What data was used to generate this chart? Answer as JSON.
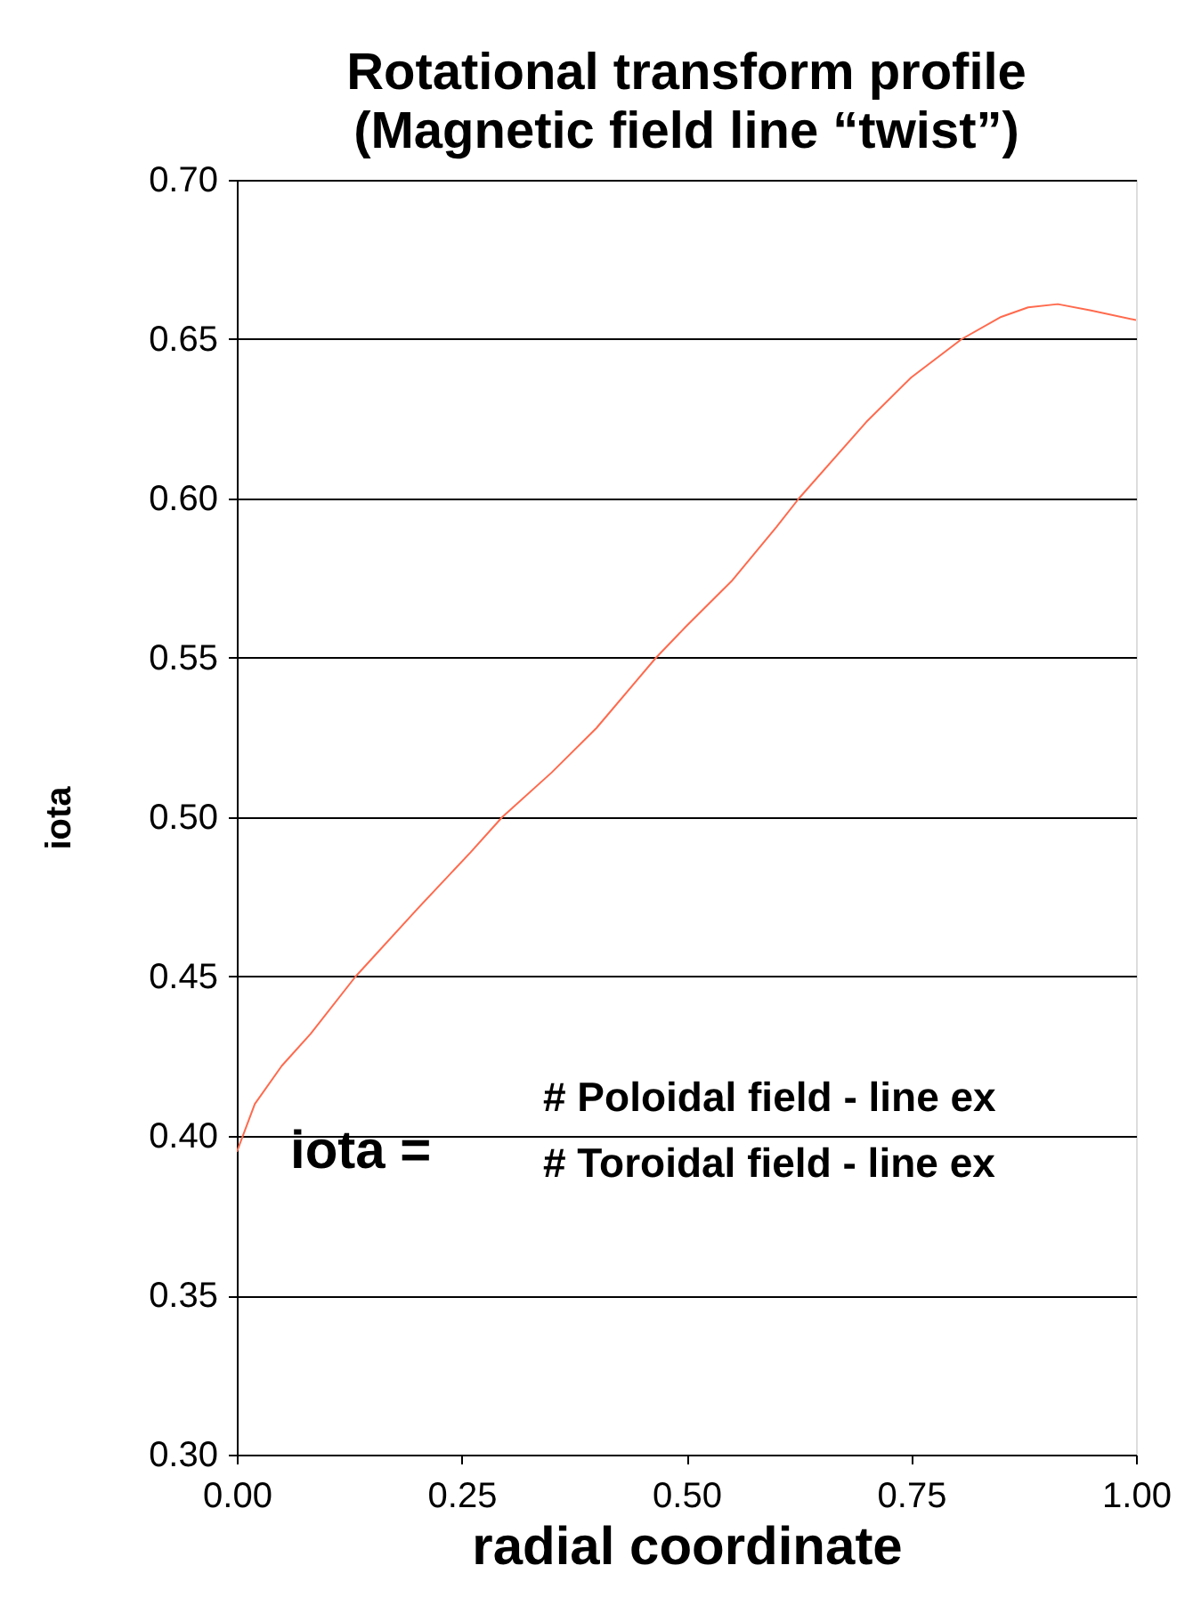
{
  "chart_data": {
    "type": "line",
    "title": "Rotational transform profile\n(Magnetic field line “twist”)",
    "xlabel": "radial coordinate",
    "ylabel": "iota",
    "x": [
      0,
      0.02,
      0.05,
      0.082,
      0.132,
      0.2,
      0.26,
      0.295,
      0.35,
      0.4,
      0.466,
      0.5,
      0.55,
      0.6,
      0.625,
      0.7,
      0.75,
      0.806,
      0.85,
      0.88,
      0.913,
      0.95,
      1.0
    ],
    "series": [
      {
        "color": "#ff6a4d",
        "values": [
          0.395,
          0.41,
          0.422,
          0.432,
          0.45,
          0.471,
          0.489,
          0.5,
          0.514,
          0.528,
          0.55,
          0.56,
          0.574,
          0.591,
          0.6,
          0.624,
          0.638,
          0.65,
          0.657,
          0.66,
          0.661,
          0.659,
          0.656
        ]
      }
    ],
    "xlim": [
      0,
      1
    ],
    "ylim": [
      0.3,
      0.7
    ],
    "xticks": [
      {
        "value": 0,
        "label": "0.00"
      },
      {
        "value": 0.25,
        "label": "0.25"
      },
      {
        "value": 0.5,
        "label": "0.50"
      },
      {
        "value": 0.75,
        "label": "0.75"
      },
      {
        "value": 1,
        "label": "1.00"
      }
    ],
    "yticks": [
      {
        "value": 0.3,
        "label": "0.30"
      },
      {
        "value": 0.35,
        "label": "0.35"
      },
      {
        "value": 0.4,
        "label": "0.40"
      },
      {
        "value": 0.45,
        "label": "0.45"
      },
      {
        "value": 0.5,
        "label": "0.50"
      },
      {
        "value": 0.55,
        "label": "0.55"
      },
      {
        "value": 0.6,
        "label": "0.60"
      },
      {
        "value": 0.65,
        "label": "0.65"
      },
      {
        "value": 0.7,
        "label": "0.70"
      }
    ],
    "grid": "y",
    "legend": false,
    "marker": "none",
    "line_style": "solid",
    "annotations": [
      "iota =",
      "# Poloidal field - line ex",
      "# Toroidal field - line ex"
    ]
  }
}
